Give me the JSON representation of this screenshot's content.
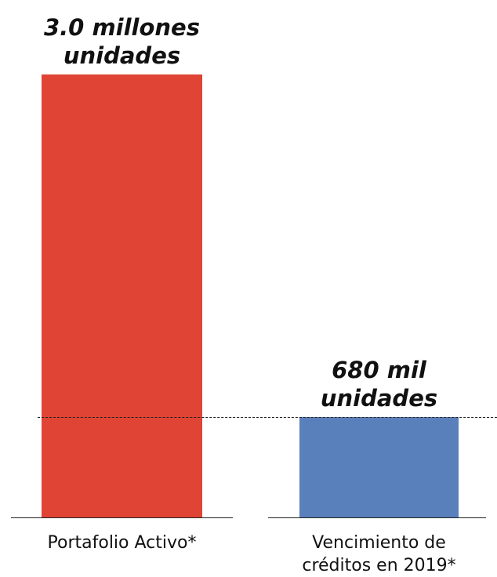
{
  "chart_data": {
    "type": "bar",
    "categories": [
      "Portafolio Activo*",
      "Vencimiento de créditos en 2019*"
    ],
    "values": [
      3000000,
      680000
    ],
    "value_labels": [
      "3.0 millones unidades",
      "680 mil unidades"
    ],
    "colors": [
      "#e04434",
      "#5a80bc"
    ]
  }
}
